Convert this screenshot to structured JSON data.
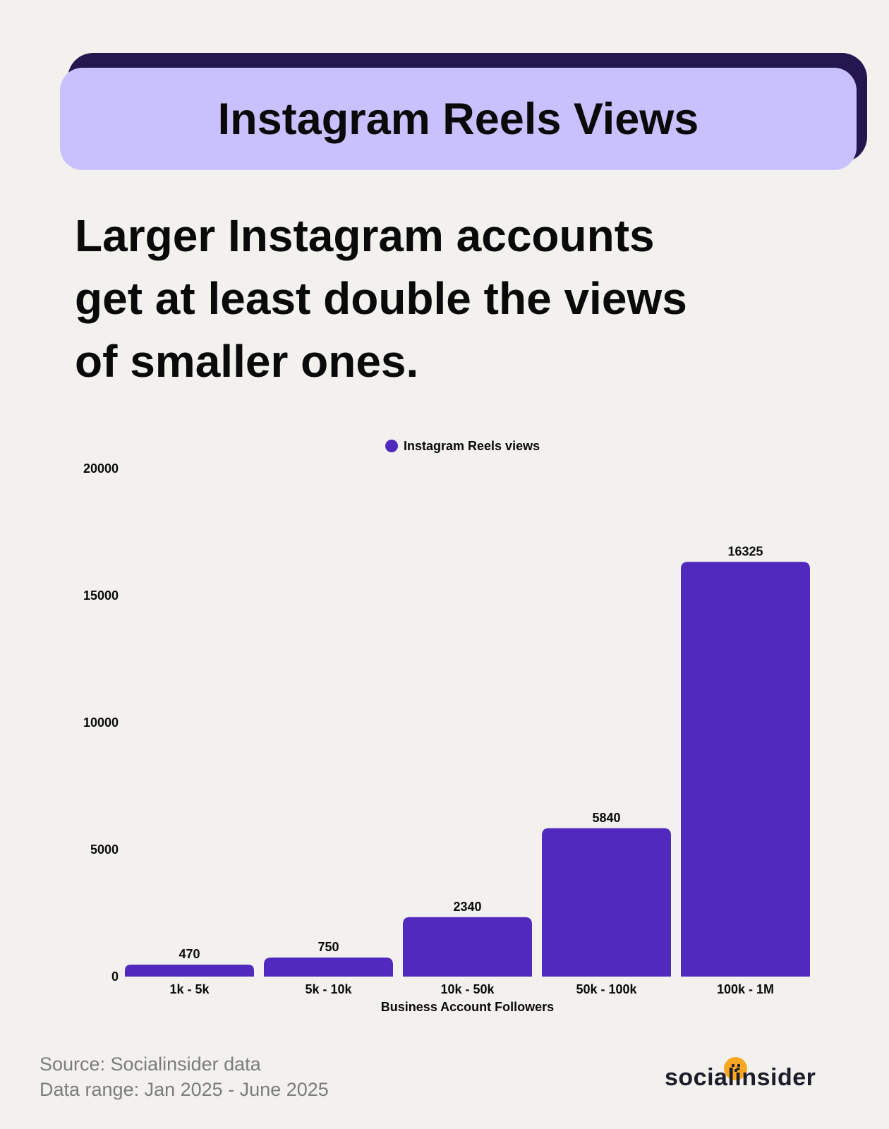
{
  "banner": {
    "title": "Instagram Reels Views"
  },
  "headline": {
    "line1": "Larger Instagram accounts",
    "line2": "get at least double the views",
    "line3": "of smaller ones."
  },
  "chart_data": {
    "type": "bar",
    "title": "",
    "categories": [
      "1k - 5k",
      "5k - 10k",
      "10k - 50k",
      "50k - 100k",
      "100k - 1M"
    ],
    "series": [
      {
        "name": "Instagram Reels views",
        "values": [
          470,
          750,
          2340,
          5840,
          16325
        ],
        "color": "#5029be"
      }
    ],
    "xlabel": "Business Account Followers",
    "ylabel": "",
    "ylim": [
      0,
      20000
    ],
    "yticks": [
      0,
      5000,
      10000,
      15000,
      20000
    ],
    "grid": false,
    "legend": "top-center",
    "data_labels": true
  },
  "footer": {
    "source": "Source: Socialinsider data",
    "range": "Data range: Jan 2025 - June 2025"
  },
  "brand": {
    "name": "socialinsider",
    "accent_color": "#f7a823",
    "icon": "smiley-face-icon"
  }
}
